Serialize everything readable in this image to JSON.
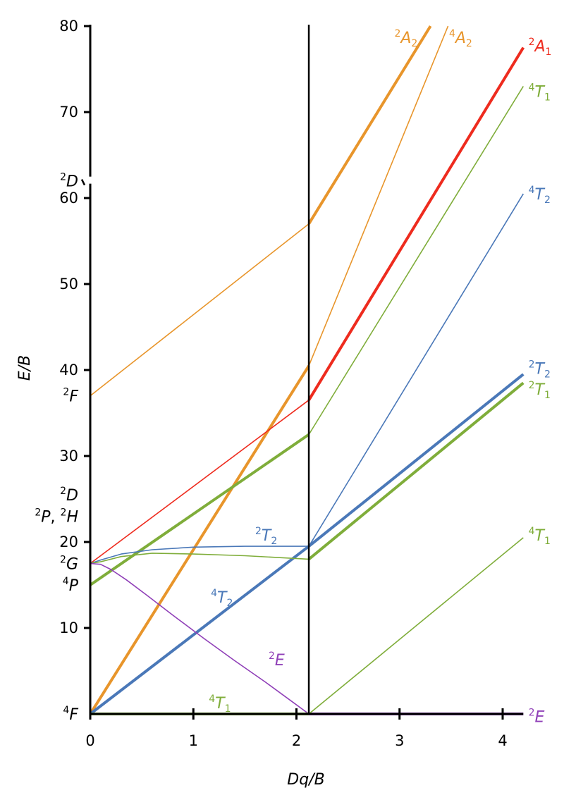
{
  "chart_data": {
    "type": "line",
    "title": "",
    "xlabel": "Dq/B",
    "ylabel": "E/B",
    "xlim": [
      0,
      4.2
    ],
    "ylim": [
      0,
      80
    ],
    "x_ticks": [
      0,
      1,
      2,
      3,
      4
    ],
    "y_ticks": [
      10,
      20,
      30,
      40,
      50,
      60,
      70,
      80
    ],
    "grid": false,
    "critical_dqb": 2.12,
    "colors": {
      "orange": "#e8952b",
      "red": "#ee2b1e",
      "green": "#7fad3a",
      "blue": "#4a78b8",
      "purple": "#9040b8",
      "axis": "#000000"
    },
    "free_ion_terms": [
      {
        "sup": "4",
        "term": "F",
        "y": 0
      },
      {
        "sup": "4",
        "term": "P",
        "y": 15
      },
      {
        "sup": "2",
        "term": "G",
        "y": 17.5
      },
      {
        "sup": "2",
        "term": "P, ",
        "sup2": "2",
        "term2": "H",
        "y": 23
      },
      {
        "sup": "2",
        "term": "D",
        "y": 25.5
      },
      {
        "sup": "2",
        "term": "F",
        "y": 37
      },
      {
        "sup": "2",
        "term": "D",
        "y": 62
      }
    ],
    "series": [
      {
        "state": "2A2",
        "color": "orange",
        "width": "thin",
        "x": [
          0,
          2.12
        ],
        "y": [
          37,
          57
        ]
      },
      {
        "state": "2A2",
        "color": "orange",
        "width": "thick",
        "x": [
          2.12,
          3.3
        ],
        "y": [
          57,
          80
        ]
      },
      {
        "state": "4A2",
        "color": "orange",
        "width": "thick",
        "x": [
          0,
          2.12
        ],
        "y": [
          0,
          40.5
        ]
      },
      {
        "state": "4A2",
        "color": "orange",
        "width": "thin",
        "x": [
          2.12,
          3.47
        ],
        "y": [
          40.5,
          80
        ]
      },
      {
        "state": "2A1",
        "color": "red",
        "width": "thin",
        "x": [
          0,
          2.12
        ],
        "y": [
          17.5,
          36.5
        ]
      },
      {
        "state": "2A1",
        "color": "red",
        "width": "thick",
        "x": [
          2.12,
          4.2
        ],
        "y": [
          36.5,
          77.5
        ]
      },
      {
        "state": "4T1 (P)",
        "color": "green",
        "width": "thick",
        "x": [
          0,
          2.12
        ],
        "y": [
          15,
          32.5
        ]
      },
      {
        "state": "4T1 (P)",
        "color": "green",
        "width": "thin",
        "x": [
          2.12,
          4.2
        ],
        "y": [
          32.5,
          73
        ]
      },
      {
        "state": "4T2",
        "color": "blue",
        "width": "thick",
        "x": [
          0,
          2.12
        ],
        "y": [
          0,
          19.5
        ]
      },
      {
        "state": "4T2",
        "color": "blue",
        "width": "thin",
        "x": [
          2.12,
          4.2
        ],
        "y": [
          19.5,
          60.5
        ]
      },
      {
        "state": "2T2",
        "color": "blue",
        "width": "thin",
        "x": [
          0,
          0.1,
          0.3,
          0.6,
          1.0,
          1.5,
          2.12
        ],
        "y": [
          17.5,
          17.9,
          18.6,
          19.1,
          19.4,
          19.5,
          19.5
        ]
      },
      {
        "state": "2T2",
        "color": "blue",
        "width": "thick",
        "x": [
          2.12,
          4.2
        ],
        "y": [
          19.5,
          39.5
        ]
      },
      {
        "state": "2T1",
        "color": "green",
        "width": "thin",
        "x": [
          0,
          0.1,
          0.3,
          0.6,
          1.0,
          1.5,
          2.12
        ],
        "y": [
          17.5,
          17.7,
          18.3,
          18.7,
          18.6,
          18.4,
          18.0
        ]
      },
      {
        "state": "2T1",
        "color": "green",
        "width": "thick",
        "x": [
          2.12,
          4.2
        ],
        "y": [
          18.0,
          38.5
        ]
      },
      {
        "state": "2E",
        "color": "purple",
        "width": "thin",
        "x": [
          0,
          0.1,
          0.2,
          0.35,
          0.55,
          0.8,
          1.1,
          1.4,
          1.7,
          1.95,
          2.12
        ],
        "y": [
          17.5,
          17.4,
          16.8,
          15.6,
          13.8,
          11.5,
          8.8,
          6.2,
          3.7,
          1.5,
          0
        ]
      },
      {
        "state": "2E",
        "color": "purple",
        "width": "thick",
        "x": [
          2.12,
          4.2
        ],
        "y": [
          0,
          0
        ]
      },
      {
        "state": "4T1 (F)",
        "color": "green",
        "width": "thick",
        "x": [
          0,
          2.12
        ],
        "y": [
          0,
          0
        ]
      },
      {
        "state": "4T1 (F)",
        "color": "green",
        "width": "thin",
        "x": [
          2.12,
          4.2
        ],
        "y": [
          0,
          20.5
        ]
      }
    ],
    "state_labels": [
      {
        "sup": "2",
        "term": "A",
        "sub": "2",
        "color": "orange",
        "x": 2.95,
        "y": 78.7
      },
      {
        "sup": "4",
        "term": "A",
        "sub": "2",
        "color": "orange",
        "x": 3.48,
        "y": 78.7
      },
      {
        "sup": "2",
        "term": "A",
        "sub": "1",
        "color": "red",
        "x": 4.25,
        "y": 77.7
      },
      {
        "sup": "4",
        "term": "T",
        "sub": "1",
        "color": "green",
        "x": 4.25,
        "y": 72.4
      },
      {
        "sup": "4",
        "term": "T",
        "sub": "2",
        "color": "blue",
        "x": 4.25,
        "y": 60.5
      },
      {
        "sup": "2",
        "term": "T",
        "sub": "2",
        "color": "blue",
        "x": 4.25,
        "y": 40.2
      },
      {
        "sup": "2",
        "term": "T",
        "sub": "1",
        "color": "green",
        "x": 4.25,
        "y": 37.8
      },
      {
        "sup": "4",
        "term": "T",
        "sub": "1",
        "color": "green",
        "x": 4.25,
        "y": 20.8
      },
      {
        "sup": "2",
        "term": "E",
        "sub": "",
        "color": "purple",
        "x": 4.25,
        "y": -0.3
      },
      {
        "sup": "2",
        "term": "T",
        "sub": "2",
        "color": "blue",
        "x": 1.6,
        "y": 20.8
      },
      {
        "sup": "4",
        "term": "T",
        "sub": "2",
        "color": "blue",
        "x": 1.17,
        "y": 13.6
      },
      {
        "sup": "2",
        "term": "E",
        "sub": "",
        "color": "purple",
        "x": 1.73,
        "y": 6.3
      },
      {
        "sup": "4",
        "term": "T",
        "sub": "1",
        "color": "green",
        "x": 1.15,
        "y": 1.3
      }
    ]
  }
}
